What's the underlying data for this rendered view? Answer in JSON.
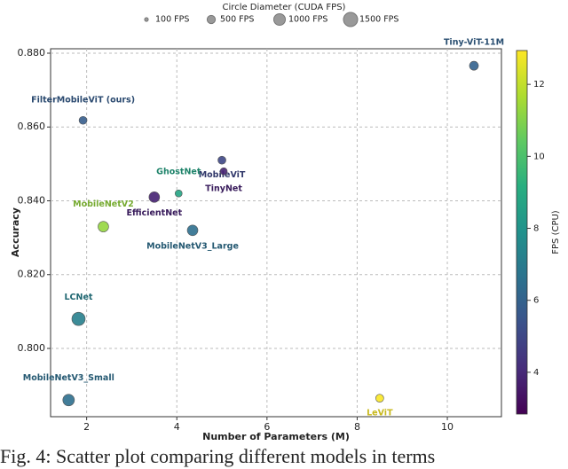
{
  "chart_data": {
    "type": "scatter",
    "size_legend": {
      "title": "Circle Diameter (CUDA FPS)",
      "values": [
        100,
        500,
        1000,
        1500
      ],
      "labels": [
        "100 FPS",
        "500 FPS",
        "1000 FPS",
        "1500 FPS"
      ]
    },
    "labels": [
      "Tiny-ViT-11M",
      "FilterMobileViT (ours)",
      "MobileViT",
      "TinyNet",
      "GhostNet",
      "EfficientNet",
      "MobileNetV2",
      "MobileNetV3_Large",
      "LCNet",
      "MobileNetV3_Small",
      "LeViT"
    ],
    "x": [
      10.59,
      1.92,
      5.0,
      5.04,
      4.04,
      3.5,
      2.37,
      4.35,
      1.82,
      1.6,
      8.5
    ],
    "values": [
      0.8766,
      0.8618,
      0.851,
      0.848,
      0.842,
      0.841,
      0.833,
      0.832,
      0.808,
      0.786,
      0.7865
    ],
    "sizes": [
      600,
      475,
      475,
      375,
      375,
      840,
      840,
      840,
      1320,
      1000,
      475
    ],
    "color_values": [
      6.0,
      5.8,
      5.0,
      3.8,
      8.7,
      3.8,
      11.3,
      6.5,
      7.2,
      6.5,
      12.9
    ],
    "xlabel": "Number of Parameters (M)",
    "ylabel": "Accuracy",
    "xlim": [
      1.2,
      11.2
    ],
    "ylim": [
      0.7815,
      0.8812
    ],
    "xticks": [
      2,
      4,
      6,
      8,
      10
    ],
    "yticks": [
      {
        "value": 0.8,
        "label": "0.800"
      },
      {
        "value": 0.82,
        "label": "0.820"
      },
      {
        "value": 0.84,
        "label": "0.840"
      },
      {
        "value": 0.86,
        "label": "0.860"
      },
      {
        "value": 0.88,
        "label": "0.880"
      }
    ],
    "grid": true,
    "colorbar": {
      "label": "FPS (CPU)",
      "lim": [
        2.84,
        12.94
      ],
      "ticks": [
        4,
        6,
        8,
        10,
        12
      ],
      "colormap": "viridis"
    },
    "caption": "Fig. 4: Scatter plot comparing different models in terms"
  }
}
